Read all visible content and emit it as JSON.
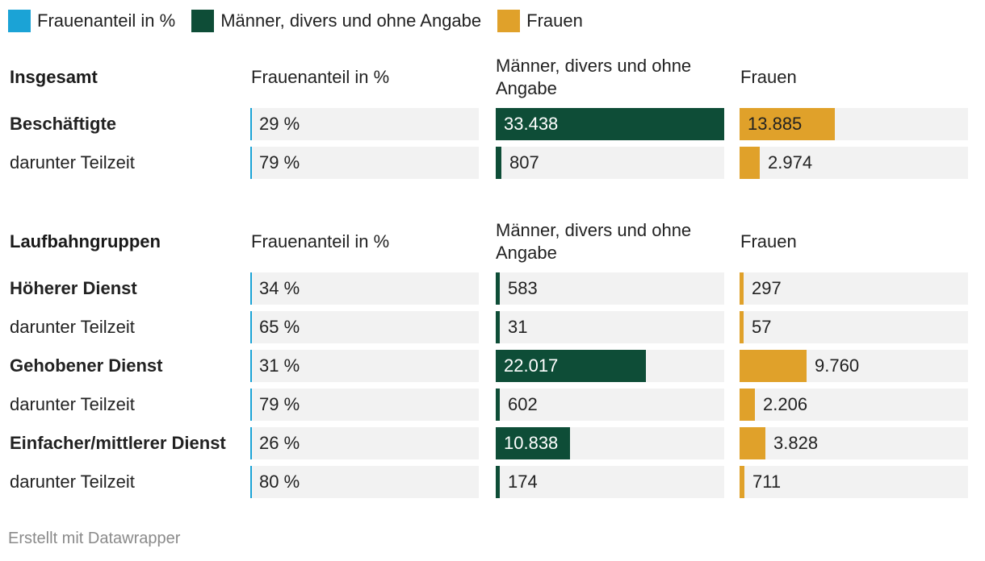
{
  "legend": [
    {
      "label": "Frauenanteil in %",
      "color": "#1ba3d6"
    },
    {
      "label": "Männer, divers und ohne Angabe",
      "color": "#0e4d37"
    },
    {
      "label": "Frauen",
      "color": "#e0a12a"
    }
  ],
  "colors": {
    "share": "#1ba3d6",
    "men": "#0e4d37",
    "women": "#e0a12a",
    "cell_bg": "#f2f2f2"
  },
  "chart_data": {
    "type": "table",
    "columns": [
      "Frauenanteil in %",
      "Männer, divers und ohne Angabe",
      "Frauen"
    ],
    "sections": [
      {
        "title": "Insgesamt",
        "headers": [
          "Frauenanteil in %",
          "Männer, divers und ohne Angabe",
          "Frauen"
        ],
        "rows": [
          {
            "label": "Beschäftigte",
            "bold": true,
            "share": 29,
            "share_text": "29 %",
            "men": 33438,
            "men_text": "33.438",
            "women": 13885,
            "women_text": "13.885"
          },
          {
            "label": "darunter Teilzeit",
            "bold": false,
            "share": 79,
            "share_text": "79 %",
            "men": 807,
            "men_text": "807",
            "women": 2974,
            "women_text": "2.974"
          }
        ]
      },
      {
        "title": "Laufbahngruppen",
        "headers": [
          "Frauenanteil in %",
          "Männer, divers und ohne Angabe",
          "Frauen"
        ],
        "rows": [
          {
            "label": "Höherer Dienst",
            "bold": true,
            "share": 34,
            "share_text": "34 %",
            "men": 583,
            "men_text": "583",
            "women": 297,
            "women_text": "297"
          },
          {
            "label": "darunter Teilzeit",
            "bold": false,
            "share": 65,
            "share_text": "65 %",
            "men": 31,
            "men_text": "31",
            "women": 57,
            "women_text": "57"
          },
          {
            "label": "Gehobener Dienst",
            "bold": true,
            "share": 31,
            "share_text": "31 %",
            "men": 22017,
            "men_text": "22.017",
            "women": 9760,
            "women_text": "9.760"
          },
          {
            "label": "darunter Teilzeit",
            "bold": false,
            "share": 79,
            "share_text": "79 %",
            "men": 602,
            "men_text": "602",
            "women": 2206,
            "women_text": "2.206"
          },
          {
            "label": "Einfacher/mittlerer Dienst",
            "bold": true,
            "share": 26,
            "share_text": "26 %",
            "men": 10838,
            "men_text": "10.838",
            "women": 3828,
            "women_text": "3.828"
          },
          {
            "label": "darunter Teilzeit",
            "bold": false,
            "share": 80,
            "share_text": "80 %",
            "men": 174,
            "men_text": "174",
            "women": 711,
            "women_text": "711"
          }
        ]
      }
    ],
    "scale_max": 33438
  },
  "footer": "Erstellt mit Datawrapper"
}
